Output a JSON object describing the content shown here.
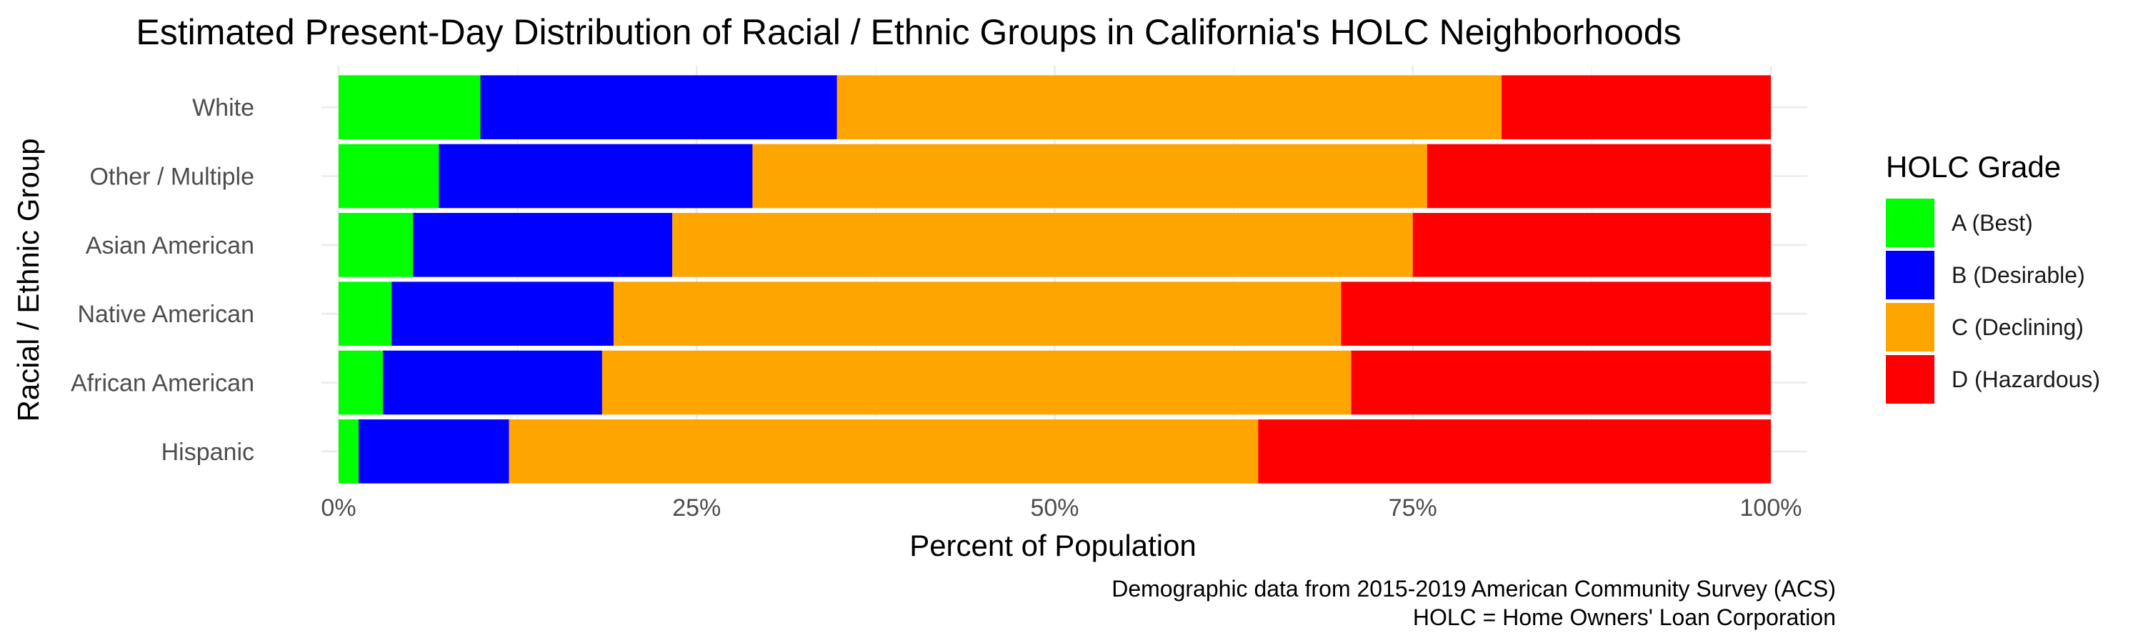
{
  "chart_data": {
    "type": "bar",
    "orientation": "horizontal",
    "stacked": true,
    "title": "Estimated Present-Day Distribution of Racial / Ethnic Groups in California's HOLC Neighborhoods",
    "xlabel": "Percent of Population",
    "ylabel": "Racial / Ethnic Group",
    "categories": [
      "White",
      "Other / Multiple",
      "Asian American",
      "Native American",
      "African American",
      "Hispanic"
    ],
    "xlim": [
      0,
      100
    ],
    "x_ticks": [
      0,
      25,
      50,
      75,
      100
    ],
    "x_tick_labels": [
      "0%",
      "25%",
      "50%",
      "75%",
      "100%"
    ],
    "legend_title": "HOLC Grade",
    "legend_position": "right",
    "grid": true,
    "series": [
      {
        "name": "A (Best)",
        "color": "#00ff00",
        "values": [
          9.9,
          7.0,
          5.2,
          3.7,
          3.1,
          1.4
        ]
      },
      {
        "name": "B (Desirable)",
        "color": "#0000ff",
        "values": [
          24.9,
          21.9,
          18.1,
          15.5,
          15.3,
          10.5
        ]
      },
      {
        "name": "C (Declining)",
        "color": "#ffa500",
        "values": [
          46.4,
          47.1,
          51.7,
          50.8,
          52.3,
          52.3
        ]
      },
      {
        "name": "D (Hazardous)",
        "color": "#ff0000",
        "values": [
          18.8,
          24.0,
          25.0,
          30.0,
          29.3,
          35.8
        ]
      }
    ],
    "caption": [
      "Demographic data from 2015-2019 American Community Survey (ACS)",
      "HOLC = Home Owners' Loan Corporation"
    ]
  }
}
